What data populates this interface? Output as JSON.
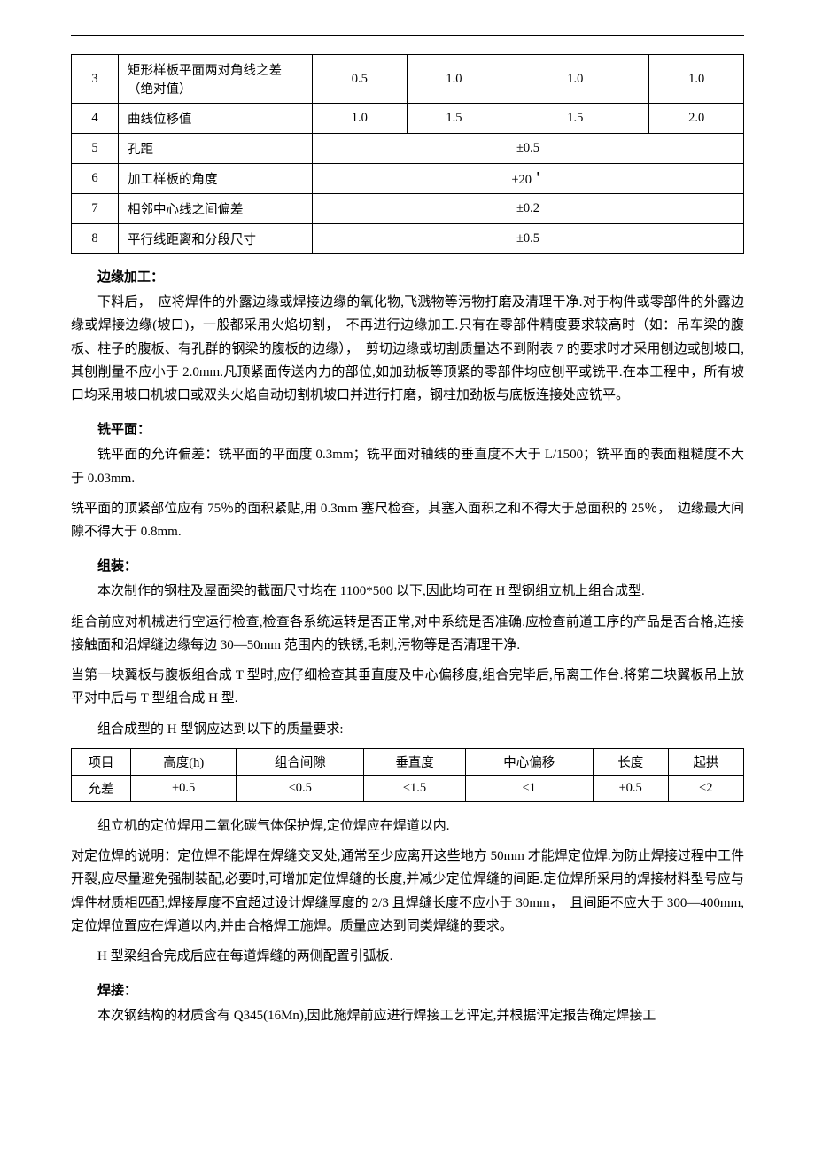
{
  "table1": {
    "rows": [
      {
        "idx": "3",
        "label": "矩形样板平面两对角线之差（绝对值）",
        "c1": "0.5",
        "c2": "1.0",
        "c3": "1.0",
        "c4": "1.0",
        "merged": false
      },
      {
        "idx": "4",
        "label": "曲线位移值",
        "c1": "1.0",
        "c2": "1.5",
        "c3": "1.5",
        "c4": "2.0",
        "merged": false
      },
      {
        "idx": "5",
        "label": "孔距",
        "merged_val": "±0.5",
        "merged": true
      },
      {
        "idx": "6",
        "label": "加工样板的角度",
        "merged_val": "±20＇",
        "merged": true
      },
      {
        "idx": "7",
        "label": "相邻中心线之间偏差",
        "merged_val": "±0.2",
        "merged": true
      },
      {
        "idx": "8",
        "label": "平行线距离和分段尺寸",
        "merged_val": "±0.5",
        "merged": true
      }
    ]
  },
  "sections": {
    "s1_title": "边缘加工：",
    "s1_p1": "下料后，　应将焊件的外露边缘或焊接边缘的氧化物,飞溅物等污物打磨及清理干净.对于构件或零部件的外露边缘或焊接边缘(坡口)，一般都采用火焰切割，　不再进行边缘加工.只有在零部件精度要求较高时（如：吊车梁的腹板、柱子的腹板、有孔群的钢梁的腹板的边缘），　剪切边缘或切割质量达不到附表 7 的要求时才采用刨边或刨坡口,其刨削量不应小于 2.0mm.凡顶紧面传送内力的部位,如加劲板等顶紧的零部件均应刨平或铣平.在本工程中，所有坡口均采用坡口机坡口或双头火焰自动切割机坡口并进行打磨，钢柱加劲板与底板连接处应铣平。",
    "s2_title": "铣平面：",
    "s2_p1": "铣平面的允许偏差：铣平面的平面度 0.3mm；铣平面对轴线的垂直度不大于 L/1500；铣平面的表面粗糙度不大于 0.03mm.",
    "s2_p2": "铣平面的顶紧部位应有 75％的面积紧贴,用 0.3mm 塞尺检查，其塞入面积之和不得大于总面积的 25％，　边缘最大间隙不得大于 0.8mm.",
    "s3_title": "组装：",
    "s3_p1": "本次制作的钢柱及屋面梁的截面尺寸均在 1100*500 以下,因此均可在 H 型钢组立机上组合成型.",
    "s3_p2": "组合前应对机械进行空运行检查,检查各系统运转是否正常,对中系统是否准确.应检查前道工序的产品是否合格,连接接触面和沿焊缝边缘每边 30—50mm 范围内的铁锈,毛刺,污物等是否清理干净.",
    "s3_p3": "当第一块翼板与腹板组合成 T 型时,应仔细检查其垂直度及中心偏移度,组合完毕后,吊离工作台.将第二块翼板吊上放平对中后与 T 型组合成 H 型.",
    "s3_p4": "组合成型的 H 型钢应达到以下的质量要求:"
  },
  "table2": {
    "header": [
      "项目",
      "高度(h)",
      "组合间隙",
      "垂直度",
      "中心偏移",
      "长度",
      "起拱"
    ],
    "row": [
      "允差",
      "±0.5",
      "≤0.5",
      "≤1.5",
      "≤1",
      "±0.5",
      "≤2"
    ]
  },
  "sections2": {
    "s4_p1": "组立机的定位焊用二氧化碳气体保护焊,定位焊应在焊道以内.",
    "s4_p2": "对定位焊的说明：定位焊不能焊在焊缝交叉处,通常至少应离开这些地方 50mm 才能焊定位焊.为防止焊接过程中工件开裂,应尽量避免强制装配,必要时,可增加定位焊缝的长度,并减少定位焊缝的间距.定位焊所采用的焊接材料型号应与焊件材质相匹配,焊接厚度不宜超过设计焊缝厚度的 2/3 且焊缝长度不应小于 30mm，　且间距不应大于 300—400mm,定位焊位置应在焊道以内,并由合格焊工施焊。质量应达到同类焊缝的要求。",
    "s4_p3": "H 型梁组合完成后应在每道焊缝的两侧配置引弧板.",
    "s5_title": "焊接：",
    "s5_p1": "本次钢结构的材质含有 Q345(16Mn),因此施焊前应进行焊接工艺评定,并根据评定报告确定焊接工"
  }
}
